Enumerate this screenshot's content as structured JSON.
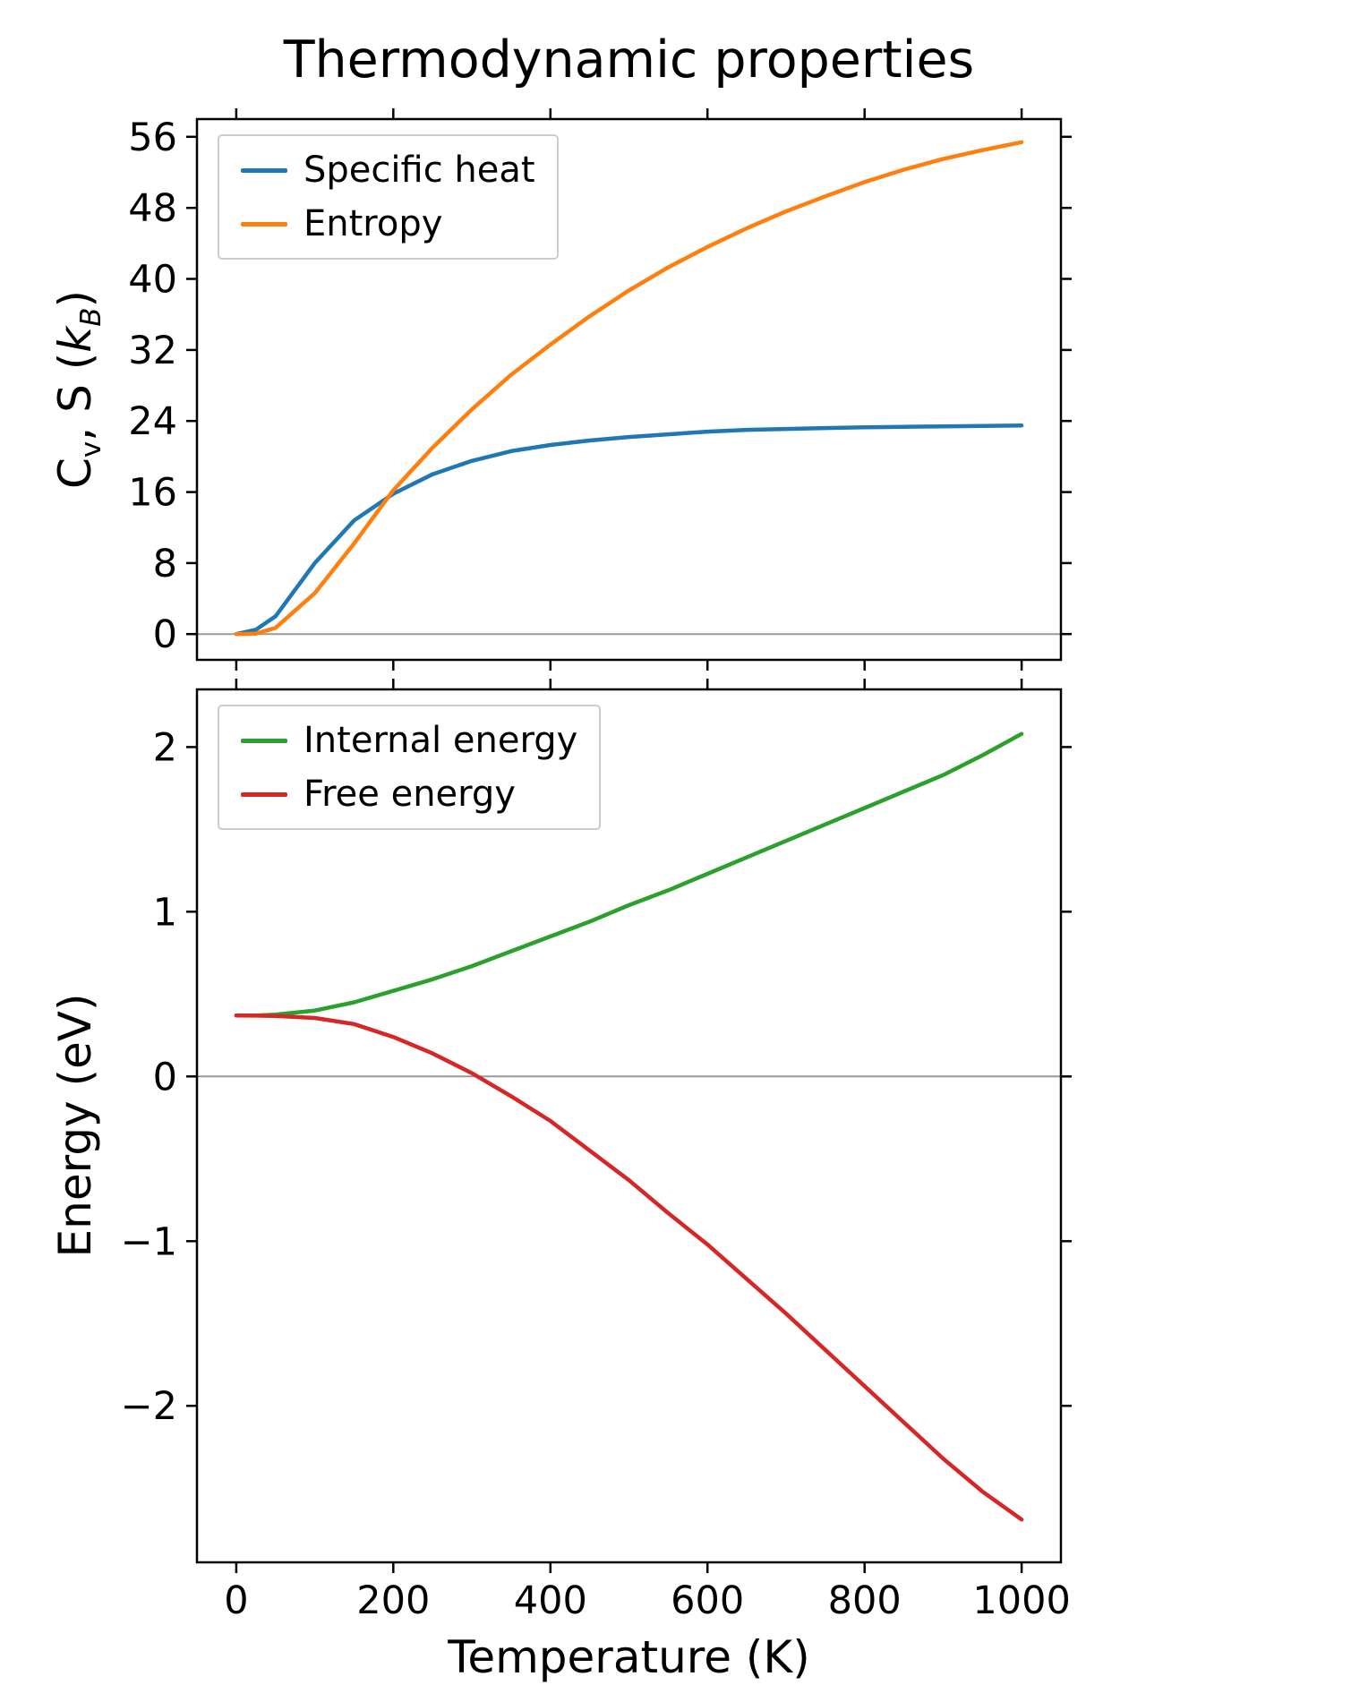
{
  "style": {
    "spine_color": "#000000",
    "zero_line_color": "#9a9a9a",
    "text_color": "#000000",
    "legend_border_color": "#cccccc",
    "background": "#ffffff"
  },
  "chart_data": [
    {
      "type": "line",
      "title": "Thermodynamic properties",
      "xlabel": "",
      "ylabel": "C_v, S (k_B)",
      "xlim": [
        -50,
        1050
      ],
      "ylim": [
        -2.9,
        58.0
      ],
      "grid": false,
      "zero_line": true,
      "legend_position": "upper-left",
      "xticks": [
        0,
        200,
        400,
        600,
        800,
        1000
      ],
      "xtick_labels": [
        "0",
        "200",
        "400",
        "600",
        "800",
        "1000"
      ],
      "yticks": [
        0,
        8,
        16,
        24,
        32,
        40,
        48,
        56
      ],
      "ytick_labels": [
        "0",
        "8",
        "16",
        "24",
        "32",
        "40",
        "48",
        "56"
      ],
      "x": [
        0,
        25,
        50,
        100,
        150,
        200,
        250,
        300,
        350,
        400,
        450,
        500,
        550,
        600,
        650,
        700,
        750,
        800,
        850,
        900,
        950,
        1000
      ],
      "series": [
        {
          "name": "Specific heat",
          "color": "#1f77b4",
          "values": [
            0.0,
            0.5,
            2.0,
            8.0,
            12.8,
            15.8,
            18.0,
            19.5,
            20.6,
            21.3,
            21.8,
            22.2,
            22.5,
            22.8,
            23.0,
            23.1,
            23.2,
            23.3,
            23.35,
            23.4,
            23.45,
            23.5
          ]
        },
        {
          "name": "Entropy",
          "color": "#ff7f0e",
          "values": [
            0.0,
            0.05,
            0.7,
            4.6,
            10.2,
            16.2,
            21.0,
            25.3,
            29.2,
            32.6,
            35.8,
            38.7,
            41.3,
            43.6,
            45.7,
            47.6,
            49.3,
            50.9,
            52.3,
            53.5,
            54.5,
            55.4
          ]
        }
      ]
    },
    {
      "type": "line",
      "title": "",
      "xlabel": "Temperature (K)",
      "ylabel": "Energy (eV)",
      "xlim": [
        -50,
        1050
      ],
      "ylim": [
        -2.95,
        2.35
      ],
      "grid": false,
      "zero_line": true,
      "legend_position": "upper-left",
      "xticks": [
        0,
        200,
        400,
        600,
        800,
        1000
      ],
      "xtick_labels": [
        "0",
        "200",
        "400",
        "600",
        "800",
        "1000"
      ],
      "yticks": [
        -2,
        -1,
        0,
        1,
        2
      ],
      "ytick_labels": [
        "−2",
        "−1",
        "0",
        "1",
        "2"
      ],
      "x": [
        0,
        25,
        50,
        100,
        150,
        200,
        250,
        300,
        350,
        400,
        450,
        500,
        550,
        600,
        650,
        700,
        750,
        800,
        850,
        900,
        950,
        1000
      ],
      "series": [
        {
          "name": "Internal energy",
          "color": "#2ca02c",
          "values": [
            0.37,
            0.37,
            0.375,
            0.4,
            0.45,
            0.52,
            0.59,
            0.67,
            0.76,
            0.85,
            0.94,
            1.04,
            1.13,
            1.23,
            1.33,
            1.43,
            1.53,
            1.63,
            1.73,
            1.83,
            1.95,
            2.08
          ]
        },
        {
          "name": "Free energy",
          "color": "#d62728",
          "values": [
            0.37,
            0.369,
            0.367,
            0.355,
            0.318,
            0.24,
            0.14,
            0.02,
            -0.12,
            -0.27,
            -0.45,
            -0.63,
            -0.83,
            -1.02,
            -1.23,
            -1.44,
            -1.66,
            -1.88,
            -2.1,
            -2.32,
            -2.52,
            -2.69
          ]
        }
      ]
    }
  ]
}
